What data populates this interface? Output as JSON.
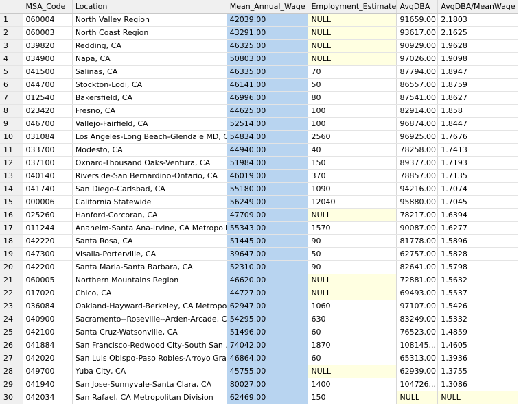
{
  "columns": [
    "",
    "MSA_Code",
    "Location",
    "Mean_Annual_Wage",
    "Employment_Estimate",
    "AvgDBA",
    "AvgDBA/MeanWage"
  ],
  "rows": [
    [
      "1",
      "060004",
      "North Valley Region",
      "42039.00",
      "NULL",
      "91659.00",
      "2.1803"
    ],
    [
      "2",
      "060003",
      "North Coast Region",
      "43291.00",
      "NULL",
      "93617.00",
      "2.1625"
    ],
    [
      "3",
      "039820",
      "Redding, CA",
      "46325.00",
      "NULL",
      "90929.00",
      "1.9628"
    ],
    [
      "4",
      "034900",
      "Napa, CA",
      "50803.00",
      "NULL",
      "97026.00",
      "1.9098"
    ],
    [
      "5",
      "041500",
      "Salinas, CA",
      "46335.00",
      "70",
      "87794.00",
      "1.8947"
    ],
    [
      "6",
      "044700",
      "Stockton-Lodi, CA",
      "46141.00",
      "50",
      "86557.00",
      "1.8759"
    ],
    [
      "7",
      "012540",
      "Bakersfield, CA",
      "46996.00",
      "80",
      "87541.00",
      "1.8627"
    ],
    [
      "8",
      "023420",
      "Fresno, CA",
      "44625.00",
      "100",
      "82914.00",
      "1.858"
    ],
    [
      "9",
      "046700",
      "Vallejo-Fairfield, CA",
      "52514.00",
      "100",
      "96874.00",
      "1.8447"
    ],
    [
      "10",
      "031084",
      "Los Angeles-Long Beach-Glendale MD, CA",
      "54834.00",
      "2560",
      "96925.00",
      "1.7676"
    ],
    [
      "11",
      "033700",
      "Modesto, CA",
      "44940.00",
      "40",
      "78258.00",
      "1.7413"
    ],
    [
      "12",
      "037100",
      "Oxnard-Thousand Oaks-Ventura, CA",
      "51984.00",
      "150",
      "89377.00",
      "1.7193"
    ],
    [
      "13",
      "040140",
      "Riverside-San Bernardino-Ontario, CA",
      "46019.00",
      "370",
      "78857.00",
      "1.7135"
    ],
    [
      "14",
      "041740",
      "San Diego-Carlsbad, CA",
      "55180.00",
      "1090",
      "94216.00",
      "1.7074"
    ],
    [
      "15",
      "000006",
      "California Statewide",
      "56249.00",
      "12040",
      "95880.00",
      "1.7045"
    ],
    [
      "16",
      "025260",
      "Hanford-Corcoran, CA",
      "47709.00",
      "NULL",
      "78217.00",
      "1.6394"
    ],
    [
      "17",
      "011244",
      "Anaheim-Santa Ana-Irvine, CA Metropolit...",
      "55343.00",
      "1570",
      "90087.00",
      "1.6277"
    ],
    [
      "18",
      "042220",
      "Santa Rosa, CA",
      "51445.00",
      "90",
      "81778.00",
      "1.5896"
    ],
    [
      "19",
      "047300",
      "Visalia-Porterville, CA",
      "39647.00",
      "50",
      "62757.00",
      "1.5828"
    ],
    [
      "20",
      "042200",
      "Santa Maria-Santa Barbara, CA",
      "52310.00",
      "90",
      "82641.00",
      "1.5798"
    ],
    [
      "21",
      "060005",
      "Northern Mountains Region",
      "46620.00",
      "NULL",
      "72881.00",
      "1.5632"
    ],
    [
      "22",
      "017020",
      "Chico, CA",
      "44727.00",
      "NULL",
      "69493.00",
      "1.5537"
    ],
    [
      "23",
      "036084",
      "Oakland-Hayward-Berkeley, CA Metropoli...",
      "62947.00",
      "1060",
      "97107.00",
      "1.5426"
    ],
    [
      "24",
      "040900",
      "Sacramento--Roseville--Arden-Arcade, CA",
      "54295.00",
      "630",
      "83249.00",
      "1.5332"
    ],
    [
      "25",
      "042100",
      "Santa Cruz-Watsonville, CA",
      "51496.00",
      "60",
      "76523.00",
      "1.4859"
    ],
    [
      "26",
      "041884",
      "San Francisco-Redwood City-South San ...",
      "74042.00",
      "1870",
      "108145...",
      "1.4605"
    ],
    [
      "27",
      "042020",
      "San Luis Obispo-Paso Robles-Arroyo Gra...",
      "46864.00",
      "60",
      "65313.00",
      "1.3936"
    ],
    [
      "28",
      "049700",
      "Yuba City, CA",
      "45755.00",
      "NULL",
      "62939.00",
      "1.3755"
    ],
    [
      "29",
      "041940",
      "San Jose-Sunnyvale-Santa Clara, CA",
      "80027.00",
      "1400",
      "104726...",
      "1.3086"
    ],
    [
      "30",
      "042034",
      "San Rafael, CA Metropolitan Division",
      "62469.00",
      "150",
      "NULL",
      "NULL"
    ]
  ],
  "selected_column": "Mean_Annual_Wage",
  "colors": {
    "header_bg": "#f0f0f0",
    "selected_bg": "#b8d4f0",
    "null_bg": "#ffffe1",
    "grid_line": "#d8d8d8"
  }
}
